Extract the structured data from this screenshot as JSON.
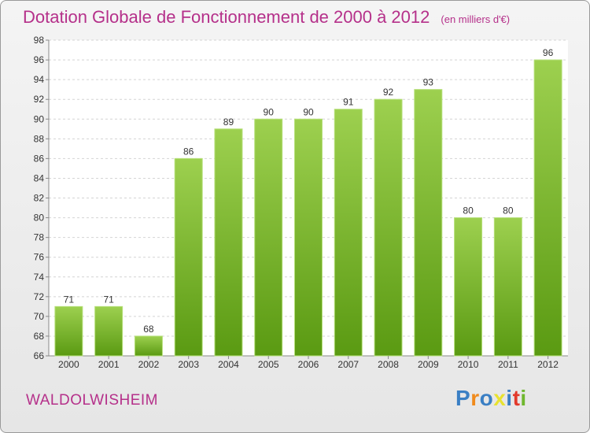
{
  "header": {
    "title": "Dotation Globale de Fonctionnement de 2000 à 2012",
    "subtitle": "(en milliers d'€)"
  },
  "footer": {
    "place": "WALDOLWISHEIM",
    "logo_letters": [
      "P",
      "r",
      "o",
      "x",
      "i",
      "t",
      "i"
    ],
    "logo_colors": [
      "#3a7fc4",
      "#f08a1c",
      "#3a7fc4",
      "#e8e230",
      "#3a7fc4",
      "#e23a2c",
      "#6fb72e"
    ]
  },
  "colors": {
    "bar_top": "#9dd04f",
    "bar_bottom": "#5a9a12",
    "accent": "#b5308a"
  },
  "chart_data": {
    "type": "bar",
    "title": "Dotation Globale de Fonctionnement de 2000 à 2012",
    "subtitle": "(en milliers d'€)",
    "xlabel": "",
    "ylabel": "",
    "categories": [
      "2000",
      "2001",
      "2002",
      "2003",
      "2004",
      "2005",
      "2006",
      "2007",
      "2008",
      "2009",
      "2010",
      "2011",
      "2012"
    ],
    "values": [
      71,
      71,
      68,
      86,
      89,
      90,
      90,
      91,
      92,
      93,
      80,
      80,
      96
    ],
    "ylim": [
      66,
      98
    ],
    "yticks": [
      66,
      68,
      70,
      72,
      74,
      76,
      78,
      80,
      82,
      84,
      86,
      88,
      90,
      92,
      94,
      96,
      98
    ],
    "grid": true,
    "legend": "none"
  }
}
